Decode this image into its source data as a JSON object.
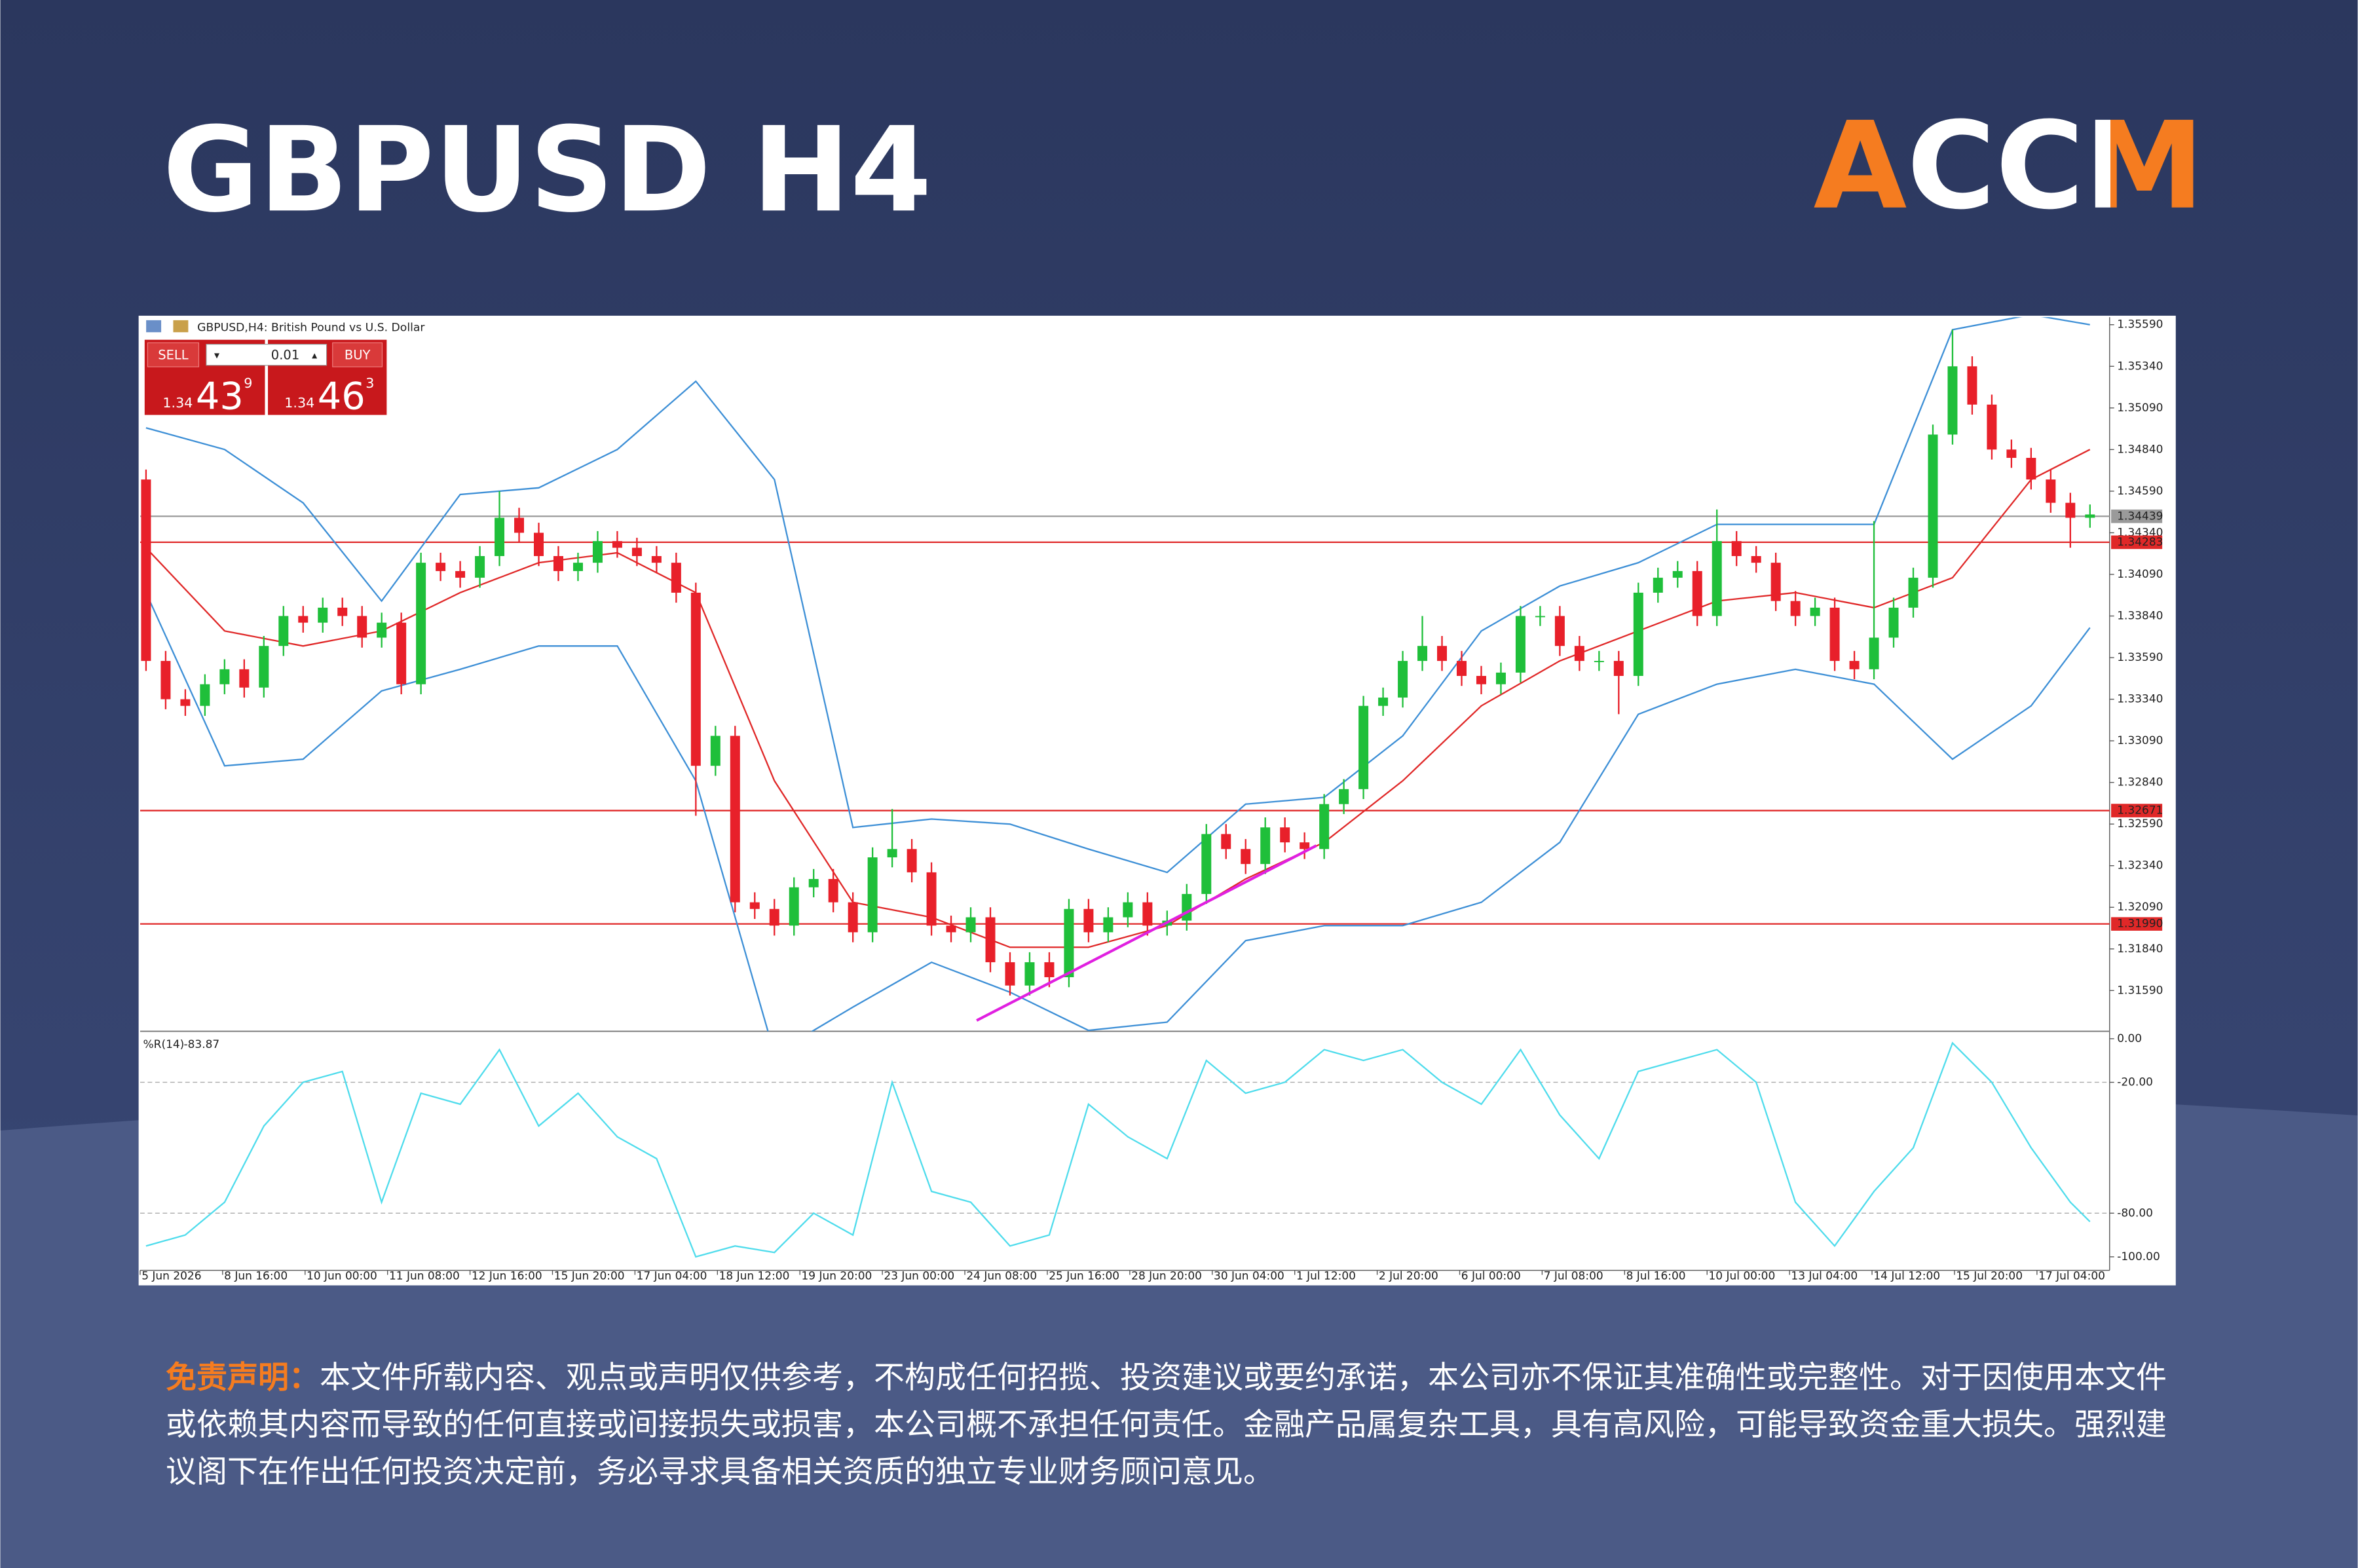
{
  "header": {
    "title": "GBPUSD H4",
    "logo": "ACCM"
  },
  "trade_panel": {
    "sell_label": "SELL",
    "buy_label": "BUY",
    "lot": "0.01",
    "bid": {
      "prefix": "1.34",
      "big": "43",
      "point": "9"
    },
    "ask": {
      "prefix": "1.34",
      "big": "46",
      "point": "3"
    }
  },
  "chart_data": {
    "type": "candlestick",
    "title": "GBPUSD,H4: British Pound vs U.S. Dollar",
    "up_color": "#1fbf3a",
    "down_color": "#e8202a",
    "open": [
      1.3466,
      1.3357,
      1.3334,
      1.333,
      1.3343,
      1.3352,
      1.3341,
      1.3366,
      1.3384,
      1.338,
      1.3389,
      1.3384,
      1.3371,
      1.338,
      1.3343,
      1.3416,
      1.3411,
      1.3407,
      1.342,
      1.3443,
      1.3434,
      1.342,
      1.3411,
      1.3416,
      1.3429,
      1.3425,
      1.342,
      1.3416,
      1.3398,
      1.3294,
      1.3312,
      1.3212,
      1.3208,
      1.3198,
      1.3221,
      1.3226,
      1.3212,
      1.3194,
      1.3239,
      1.3244,
      1.323,
      1.3198,
      1.3194,
      1.3203,
      1.3176,
      1.3162,
      1.3176,
      1.3167,
      1.3208,
      1.3194,
      1.3203,
      1.3212,
      1.3198,
      1.3201,
      1.3217,
      1.3253,
      1.3244,
      1.3235,
      1.3257,
      1.3248,
      1.3244,
      1.3271,
      1.328,
      1.333,
      1.3335,
      1.3357,
      1.3366,
      1.3357,
      1.3348,
      1.3343,
      1.335,
      1.3384,
      1.3384,
      1.3366,
      1.3357,
      1.3357,
      1.3348,
      1.3398,
      1.3407,
      1.3411,
      1.3384,
      1.3429,
      1.342,
      1.3416,
      1.3393,
      1.3384,
      1.3389,
      1.3357,
      1.3352,
      1.3371,
      1.3389,
      1.3407,
      1.3493,
      1.3534,
      1.3511,
      1.3484,
      1.3479,
      1.3466,
      1.3452,
      1.3443
    ],
    "high": [
      1.3472,
      1.3363,
      1.334,
      1.3349,
      1.3358,
      1.3358,
      1.3372,
      1.339,
      1.339,
      1.3395,
      1.3395,
      1.339,
      1.3386,
      1.3386,
      1.3422,
      1.3422,
      1.3417,
      1.3426,
      1.3459,
      1.3449,
      1.344,
      1.3426,
      1.3422,
      1.3435,
      1.3435,
      1.3431,
      1.3426,
      1.3422,
      1.3404,
      1.3318,
      1.3318,
      1.3218,
      1.3214,
      1.3227,
      1.3232,
      1.3232,
      1.3218,
      1.3245,
      1.3268,
      1.325,
      1.3236,
      1.3204,
      1.3209,
      1.3209,
      1.3182,
      1.3182,
      1.3182,
      1.3214,
      1.3214,
      1.3209,
      1.3218,
      1.3218,
      1.3207,
      1.3223,
      1.3259,
      1.3259,
      1.325,
      1.3263,
      1.3263,
      1.3254,
      1.3277,
      1.3286,
      1.3336,
      1.3341,
      1.3363,
      1.3384,
      1.3372,
      1.3363,
      1.3354,
      1.3356,
      1.339,
      1.339,
      1.339,
      1.3372,
      1.3363,
      1.3363,
      1.3404,
      1.3413,
      1.3417,
      1.3417,
      1.3448,
      1.3435,
      1.3426,
      1.3422,
      1.3399,
      1.3395,
      1.3395,
      1.3363,
      1.3441,
      1.3395,
      1.3413,
      1.3499,
      1.3556,
      1.354,
      1.3517,
      1.349,
      1.3485,
      1.3472,
      1.3458,
      1.3451
    ],
    "low": [
      1.3351,
      1.3328,
      1.3324,
      1.3324,
      1.3337,
      1.3335,
      1.3335,
      1.336,
      1.3374,
      1.3374,
      1.3378,
      1.3365,
      1.3365,
      1.3337,
      1.3337,
      1.3405,
      1.3401,
      1.3401,
      1.3414,
      1.3428,
      1.3414,
      1.3405,
      1.3405,
      1.341,
      1.3419,
      1.3414,
      1.341,
      1.3392,
      1.3264,
      1.3288,
      1.3206,
      1.3202,
      1.3192,
      1.3192,
      1.3215,
      1.3206,
      1.3188,
      1.3188,
      1.3233,
      1.3224,
      1.3192,
      1.3188,
      1.3188,
      1.317,
      1.3156,
      1.3156,
      1.3161,
      1.3161,
      1.3188,
      1.3188,
      1.3197,
      1.3192,
      1.3192,
      1.3195,
      1.3211,
      1.3238,
      1.3229,
      1.3229,
      1.3242,
      1.3238,
      1.3238,
      1.3265,
      1.3274,
      1.3324,
      1.3329,
      1.3351,
      1.3351,
      1.3342,
      1.3337,
      1.3337,
      1.3344,
      1.3378,
      1.336,
      1.3351,
      1.3351,
      1.3325,
      1.3342,
      1.3392,
      1.3401,
      1.3378,
      1.3378,
      1.3414,
      1.341,
      1.3387,
      1.3378,
      1.3378,
      1.3351,
      1.3346,
      1.3346,
      1.3365,
      1.3383,
      1.3401,
      1.3487,
      1.3505,
      1.3478,
      1.3473,
      1.346,
      1.3446,
      1.3425,
      1.3437
    ],
    "close": [
      1.3357,
      1.3334,
      1.333,
      1.3343,
      1.3352,
      1.3341,
      1.3366,
      1.3384,
      1.338,
      1.3389,
      1.3384,
      1.3371,
      1.338,
      1.3343,
      1.3416,
      1.3411,
      1.3407,
      1.342,
      1.3443,
      1.3434,
      1.342,
      1.3411,
      1.3416,
      1.3429,
      1.3425,
      1.342,
      1.3416,
      1.3398,
      1.3294,
      1.3312,
      1.3212,
      1.3208,
      1.3198,
      1.3221,
      1.3226,
      1.3212,
      1.3194,
      1.3239,
      1.3244,
      1.323,
      1.3198,
      1.3194,
      1.3203,
      1.3176,
      1.3162,
      1.3176,
      1.3167,
      1.3208,
      1.3194,
      1.3203,
      1.3212,
      1.3198,
      1.3201,
      1.3217,
      1.3253,
      1.3244,
      1.3235,
      1.3257,
      1.3248,
      1.3244,
      1.3271,
      1.328,
      1.333,
      1.3335,
      1.3357,
      1.3366,
      1.3357,
      1.3348,
      1.3343,
      1.335,
      1.3384,
      1.3384,
      1.3366,
      1.3357,
      1.3357,
      1.3348,
      1.3398,
      1.3407,
      1.3411,
      1.3384,
      1.3429,
      1.342,
      1.3416,
      1.3393,
      1.3384,
      1.3389,
      1.3357,
      1.3352,
      1.3371,
      1.3389,
      1.3407,
      1.3493,
      1.3534,
      1.3511,
      1.3484,
      1.3479,
      1.3466,
      1.3452,
      1.3443,
      1.3445
    ],
    "xlim": [
      -0.3,
      100
    ],
    "xticks": [
      {
        "value": -0.3,
        "label": "5 Jun 2026"
      },
      {
        "value": 3.9,
        "label": "8 Jun 16:00"
      },
      {
        "value": 8.1,
        "label": "10 Jun 00:00"
      },
      {
        "value": 12.3,
        "label": "11 Jun 08:00"
      },
      {
        "value": 16.5,
        "label": "12 Jun 16:00"
      },
      {
        "value": 20.7,
        "label": "15 Jun 20:00"
      },
      {
        "value": 24.9,
        "label": "17 Jun 04:00"
      },
      {
        "value": 29.1,
        "label": "18 Jun 12:00"
      },
      {
        "value": 33.3,
        "label": "19 Jun 20:00"
      },
      {
        "value": 37.5,
        "label": "23 Jun 00:00"
      },
      {
        "value": 41.7,
        "label": "24 Jun 08:00"
      },
      {
        "value": 45.9,
        "label": "25 Jun 16:00"
      },
      {
        "value": 50.1,
        "label": "28 Jun 20:00"
      },
      {
        "value": 54.3,
        "label": "30 Jun 04:00"
      },
      {
        "value": 58.5,
        "label": "1 Jul 12:00"
      },
      {
        "value": 62.7,
        "label": "2 Jul 20:00"
      },
      {
        "value": 66.9,
        "label": "6 Jul 00:00"
      },
      {
        "value": 71.1,
        "label": "7 Jul 08:00"
      },
      {
        "value": 75.3,
        "label": "8 Jul 16:00"
      },
      {
        "value": 79.5,
        "label": "10 Jul 00:00"
      },
      {
        "value": 83.7,
        "label": "13 Jul 04:00"
      },
      {
        "value": 87.9,
        "label": "14 Jul 12:00"
      },
      {
        "value": 92.1,
        "label": "15 Jul 20:00"
      },
      {
        "value": 96.3,
        "label": "17 Jul 04:00"
      }
    ],
    "ylim": [
      1.31345,
      1.35635
    ],
    "yticks": [
      {
        "value": 1.3559,
        "label": "1.35590"
      },
      {
        "value": 1.3534,
        "label": "1.35340"
      },
      {
        "value": 1.3509,
        "label": "1.35090"
      },
      {
        "value": 1.3484,
        "label": "1.34840"
      },
      {
        "value": 1.3459,
        "label": "1.34590"
      },
      {
        "value": 1.3434,
        "label": "1.34340"
      },
      {
        "value": 1.3409,
        "label": "1.34090"
      },
      {
        "value": 1.3384,
        "label": "1.33840"
      },
      {
        "value": 1.3359,
        "label": "1.33590"
      },
      {
        "value": 1.3334,
        "label": "1.33340"
      },
      {
        "value": 1.3309,
        "label": "1.33090"
      },
      {
        "value": 1.3284,
        "label": "1.32840"
      },
      {
        "value": 1.3259,
        "label": "1.32590"
      },
      {
        "value": 1.3234,
        "label": "1.32340"
      },
      {
        "value": 1.3209,
        "label": "1.32090"
      },
      {
        "value": 1.3184,
        "label": "1.31840"
      },
      {
        "value": 1.3159,
        "label": "1.31590"
      }
    ],
    "bands": {
      "band_color": "#3d8fd6",
      "middle_color": "#e02828",
      "x": [
        0,
        4,
        8,
        12,
        16,
        20,
        24,
        28,
        32,
        36,
        40,
        44,
        48,
        52,
        56,
        60,
        64,
        68,
        72,
        76,
        80,
        84,
        88,
        92,
        96,
        99
      ],
      "upper": [
        1.3497,
        1.3484,
        1.3452,
        1.3393,
        1.3457,
        1.3461,
        1.3484,
        1.3525,
        1.3466,
        1.3257,
        1.3262,
        1.3259,
        1.3244,
        1.323,
        1.3271,
        1.3275,
        1.3312,
        1.3375,
        1.3402,
        1.3416,
        1.3439,
        1.3439,
        1.3439,
        1.3556,
        1.3565,
        1.3559
      ],
      "middle": [
        1.3425,
        1.3375,
        1.3366,
        1.3375,
        1.3398,
        1.3416,
        1.3422,
        1.3398,
        1.3285,
        1.3212,
        1.3203,
        1.3185,
        1.3185,
        1.3198,
        1.3226,
        1.3248,
        1.3285,
        1.333,
        1.3357,
        1.3375,
        1.3393,
        1.3398,
        1.3389,
        1.3407,
        1.3466,
        1.3484
      ],
      "lower": [
        1.3398,
        1.3294,
        1.3298,
        1.3339,
        1.3352,
        1.3366,
        1.3366,
        1.3285,
        1.3121,
        1.3149,
        1.3176,
        1.3158,
        1.3135,
        1.314,
        1.3189,
        1.3198,
        1.3198,
        1.3212,
        1.3248,
        1.3325,
        1.3343,
        1.3352,
        1.3343,
        1.3298,
        1.333,
        1.3377
      ]
    },
    "levels": [
      {
        "value": 1.34439,
        "color": "#9a9a9a"
      },
      {
        "value": 1.34283,
        "color": "#e02828"
      },
      {
        "value": 1.32671,
        "color": "#e02828"
      },
      {
        "value": 1.3199,
        "label": "1.31990",
        "color": "#e02828"
      }
    ],
    "trendline": {
      "x": [
        42.3,
        59.6
      ],
      "y": [
        1.3141,
        1.3246
      ],
      "color": "#e020e0"
    },
    "indicator": {
      "name": "%R(14)",
      "color": "#4fdcec",
      "grid": "dashed",
      "ylim": [
        -106.2,
        3.4
      ],
      "yticks": [
        {
          "value": 0,
          "label": "0.00"
        },
        {
          "value": -20,
          "label": "-20.00"
        },
        {
          "value": -80,
          "label": "-80.00"
        },
        {
          "value": -100,
          "label": "-100.00"
        }
      ],
      "x": [
        0,
        2,
        4,
        6,
        8,
        10,
        12,
        14,
        16,
        18,
        20,
        22,
        24,
        26,
        28,
        30,
        32,
        34,
        36,
        38,
        40,
        42,
        44,
        46,
        48,
        50,
        52,
        54,
        56,
        58,
        60,
        62,
        64,
        66,
        68,
        70,
        72,
        74,
        76,
        78,
        80,
        82,
        84,
        86,
        88,
        90,
        92,
        94,
        96,
        98,
        99
      ],
      "values": [
        -95,
        -90,
        -75,
        -40,
        -20,
        -15,
        -75,
        -25,
        -30,
        -5,
        -40,
        -25,
        -45,
        -55,
        -100,
        -95,
        -98,
        -80,
        -90,
        -20,
        -70,
        -75,
        -95,
        -90,
        -30,
        -45,
        -55,
        -10,
        -25,
        -20,
        -5,
        -10,
        -5,
        -20,
        -30,
        -5,
        -35,
        -55,
        -15,
        -10,
        -5,
        -20,
        -75,
        -95,
        -70,
        -50,
        -2,
        -20,
        -50,
        -75,
        -83.87
      ]
    }
  },
  "disclaimer": {
    "label": "免责声明：",
    "text": "本文件所载内容、观点或声明仅供参考，不构成任何招揽、投资建议或要约承诺，本公司亦不保证其准确性或完整性。对于因使用本文件或依赖其内容而导致的任何直接或间接损失或损害，本公司概不承担任何责任。金融产品属复杂工具，具有高风险，可能导致资金重大损失。强烈建议阁下在作出任何投资决定前，务必寻求具备相关资质的独立专业财务顾问意见。"
  }
}
